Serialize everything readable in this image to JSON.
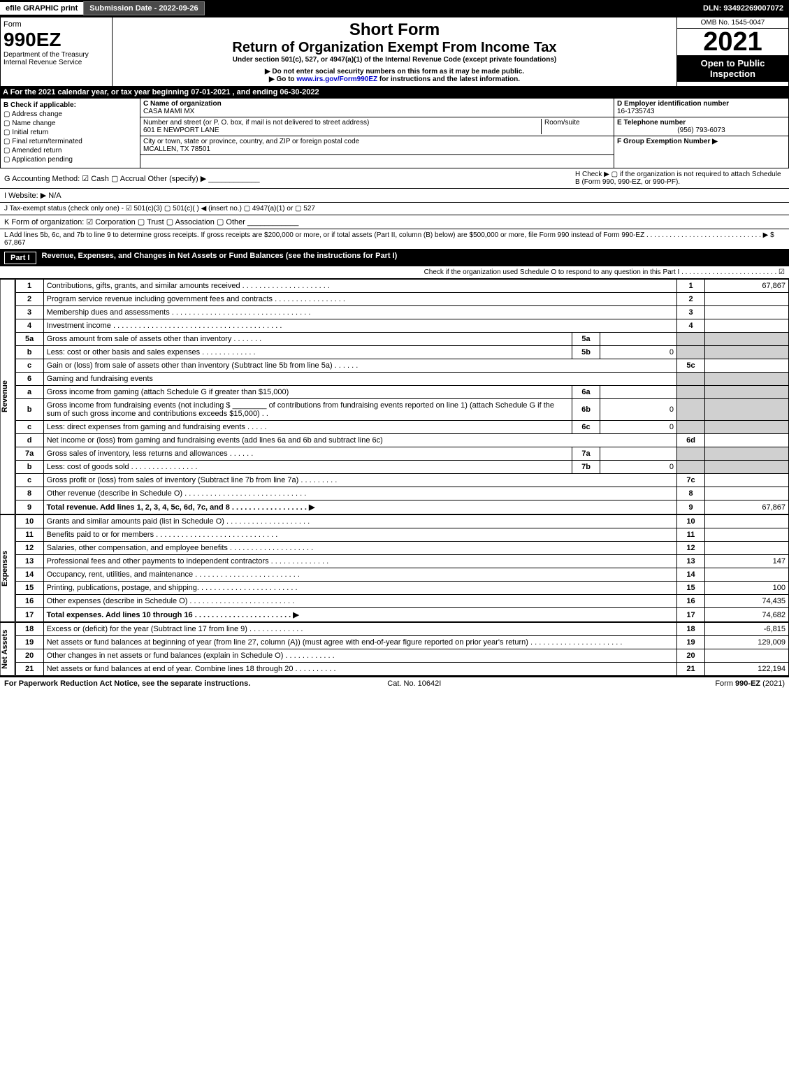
{
  "topbar": {
    "efile": "efile GRAPHIC print",
    "subdate": "Submission Date - 2022-09-26",
    "dln": "DLN: 93492269007072"
  },
  "header": {
    "form": "Form",
    "code": "990EZ",
    "dept": "Department of the Treasury",
    "irs": "Internal Revenue Service",
    "short": "Short Form",
    "title": "Return of Organization Exempt From Income Tax",
    "sub1": "Under section 501(c), 527, or 4947(a)(1) of the Internal Revenue Code (except private foundations)",
    "sub2": "▶ Do not enter social security numbers on this form as it may be made public.",
    "sub3": "▶ Go to www.irs.gov/Form990EZ for instructions and the latest information.",
    "omb": "OMB No. 1545-0047",
    "year": "2021",
    "open": "Open to Public Inspection"
  },
  "A": "A  For the 2021 calendar year, or tax year beginning 07-01-2021 , and ending 06-30-2022",
  "B": {
    "label": "B  Check if applicable:",
    "opts": [
      "Address change",
      "Name change",
      "Initial return",
      "Final return/terminated",
      "Amended return",
      "Application pending"
    ]
  },
  "C": {
    "nameLabel": "C Name of organization",
    "name": "CASA MAMI MX",
    "addrLabel": "Number and street (or P. O. box, if mail is not delivered to street address)",
    "addr": "601 E NEWPORT LANE",
    "room": "Room/suite",
    "cityLabel": "City or town, state or province, country, and ZIP or foreign postal code",
    "city": "MCALLEN, TX  78501"
  },
  "D": {
    "label": "D Employer identification number",
    "val": "16-1735743"
  },
  "E": {
    "label": "E Telephone number",
    "val": "(956) 793-6073"
  },
  "F": {
    "label": "F Group Exemption Number ▶",
    "val": ""
  },
  "G": "G Accounting Method:  ☑ Cash  ▢ Accrual  Other (specify) ▶ ____________",
  "H": "H  Check ▶ ▢ if the organization is not required to attach Schedule B (Form 990, 990-EZ, or 990-PF).",
  "I": "I Website: ▶ N/A",
  "J": "J Tax-exempt status (check only one) - ☑ 501(c)(3)  ▢ 501(c)(  ) ◀ (insert no.)  ▢ 4947(a)(1) or  ▢ 527",
  "K": "K Form of organization:  ☑ Corporation  ▢ Trust  ▢ Association  ▢ Other ____________",
  "L": "L Add lines 5b, 6c, and 7b to line 9 to determine gross receipts. If gross receipts are $200,000 or more, or if total assets (Part II, column (B) below) are $500,000 or more, file Form 990 instead of Form 990-EZ . . . . . . . . . . . . . . . . . . . . . . . . . . . . . . ▶ $ 67,867",
  "part1": {
    "title": "Revenue, Expenses, and Changes in Net Assets or Fund Balances (see the instructions for Part I)",
    "check": "Check if the organization used Schedule O to respond to any question in this Part I . . . . . . . . . . . . . . . . . . . . . . . . . ☑"
  },
  "sections": {
    "rev": "Revenue",
    "exp": "Expenses",
    "na": "Net Assets"
  },
  "rows": [
    {
      "n": "1",
      "d": "Contributions, gifts, grants, and similar amounts received . . . . . . . . . . . . . . . . . . . . .",
      "ln": "1",
      "v": "67,867"
    },
    {
      "n": "2",
      "d": "Program service revenue including government fees and contracts . . . . . . . . . . . . . . . . .",
      "ln": "2",
      "v": ""
    },
    {
      "n": "3",
      "d": "Membership dues and assessments . . . . . . . . . . . . . . . . . . . . . . . . . . . . . . . . .",
      "ln": "3",
      "v": ""
    },
    {
      "n": "4",
      "d": "Investment income . . . . . . . . . . . . . . . . . . . . . . . . . . . . . . . . . . . . . . . .",
      "ln": "4",
      "v": ""
    },
    {
      "n": "5a",
      "d": "Gross amount from sale of assets other than inventory . . . . . . .",
      "sub": "5a",
      "sv": "",
      "shade": true
    },
    {
      "n": "b",
      "d": "Less: cost or other basis and sales expenses . . . . . . . . . . . . .",
      "sub": "5b",
      "sv": "0",
      "shade": true
    },
    {
      "n": "c",
      "d": "Gain or (loss) from sale of assets other than inventory (Subtract line 5b from line 5a) . . . . . .",
      "ln": "5c",
      "v": ""
    },
    {
      "n": "6",
      "d": "Gaming and fundraising events",
      "shade": true,
      "noln": true
    },
    {
      "n": "a",
      "d": "Gross income from gaming (attach Schedule G if greater than $15,000)",
      "sub": "6a",
      "sv": "",
      "shade": true
    },
    {
      "n": "b",
      "d": "Gross income from fundraising events (not including $ ________ of contributions from fundraising events reported on line 1) (attach Schedule G if the sum of such gross income and contributions exceeds $15,000) . .",
      "sub": "6b",
      "sv": "0",
      "shade": true
    },
    {
      "n": "c",
      "d": "Less: direct expenses from gaming and fundraising events . . . . .",
      "sub": "6c",
      "sv": "0",
      "shade": true
    },
    {
      "n": "d",
      "d": "Net income or (loss) from gaming and fundraising events (add lines 6a and 6b and subtract line 6c)",
      "ln": "6d",
      "v": ""
    },
    {
      "n": "7a",
      "d": "Gross sales of inventory, less returns and allowances . . . . . .",
      "sub": "7a",
      "sv": "",
      "shade": true
    },
    {
      "n": "b",
      "d": "Less: cost of goods sold   . . . . . . . . . . . . . . . .",
      "sub": "7b",
      "sv": "0",
      "shade": true
    },
    {
      "n": "c",
      "d": "Gross profit or (loss) from sales of inventory (Subtract line 7b from line 7a) . . . . . . . . .",
      "ln": "7c",
      "v": ""
    },
    {
      "n": "8",
      "d": "Other revenue (describe in Schedule O) . . . . . . . . . . . . . . . . . . . . . . . . . . . . .",
      "ln": "8",
      "v": ""
    },
    {
      "n": "9",
      "d": "Total revenue. Add lines 1, 2, 3, 4, 5c, 6d, 7c, and 8 . . . . . . . . . . . . . . . . . .  ▶",
      "ln": "9",
      "v": "67,867",
      "bold": true
    }
  ],
  "exprows": [
    {
      "n": "10",
      "d": "Grants and similar amounts paid (list in Schedule O) . . . . . . . . . . . . . . . . . . . .",
      "ln": "10",
      "v": ""
    },
    {
      "n": "11",
      "d": "Benefits paid to or for members   . . . . . . . . . . . . . . . . . . . . . . . . . . . . .",
      "ln": "11",
      "v": ""
    },
    {
      "n": "12",
      "d": "Salaries, other compensation, and employee benefits . . . . . . . . . . . . . . . . . . . .",
      "ln": "12",
      "v": ""
    },
    {
      "n": "13",
      "d": "Professional fees and other payments to independent contractors . . . . . . . . . . . . . .",
      "ln": "13",
      "v": "147"
    },
    {
      "n": "14",
      "d": "Occupancy, rent, utilities, and maintenance . . . . . . . . . . . . . . . . . . . . . . . . .",
      "ln": "14",
      "v": ""
    },
    {
      "n": "15",
      "d": "Printing, publications, postage, and shipping. . . . . . . . . . . . . . . . . . . . . . . .",
      "ln": "15",
      "v": "100"
    },
    {
      "n": "16",
      "d": "Other expenses (describe in Schedule O)   . . . . . . . . . . . . . . . . . . . . . . . . .",
      "ln": "16",
      "v": "74,435"
    },
    {
      "n": "17",
      "d": "Total expenses. Add lines 10 through 16   . . . . . . . . . . . . . . . . . . . . . . .  ▶",
      "ln": "17",
      "v": "74,682",
      "bold": true
    }
  ],
  "narows": [
    {
      "n": "18",
      "d": "Excess or (deficit) for the year (Subtract line 17 from line 9)   . . . . . . . . . . . . .",
      "ln": "18",
      "v": "-6,815"
    },
    {
      "n": "19",
      "d": "Net assets or fund balances at beginning of year (from line 27, column (A)) (must agree with end-of-year figure reported on prior year's return) . . . . . . . . . . . . . . . . . . . . . .",
      "ln": "19",
      "v": "129,009"
    },
    {
      "n": "20",
      "d": "Other changes in net assets or fund balances (explain in Schedule O) . . . . . . . . . . . .",
      "ln": "20",
      "v": ""
    },
    {
      "n": "21",
      "d": "Net assets or fund balances at end of year. Combine lines 18 through 20 . . . . . . . . . .",
      "ln": "21",
      "v": "122,194"
    }
  ],
  "footer": {
    "l": "For Paperwork Reduction Act Notice, see the separate instructions.",
    "c": "Cat. No. 10642I",
    "r": "Form 990-EZ (2021)"
  }
}
